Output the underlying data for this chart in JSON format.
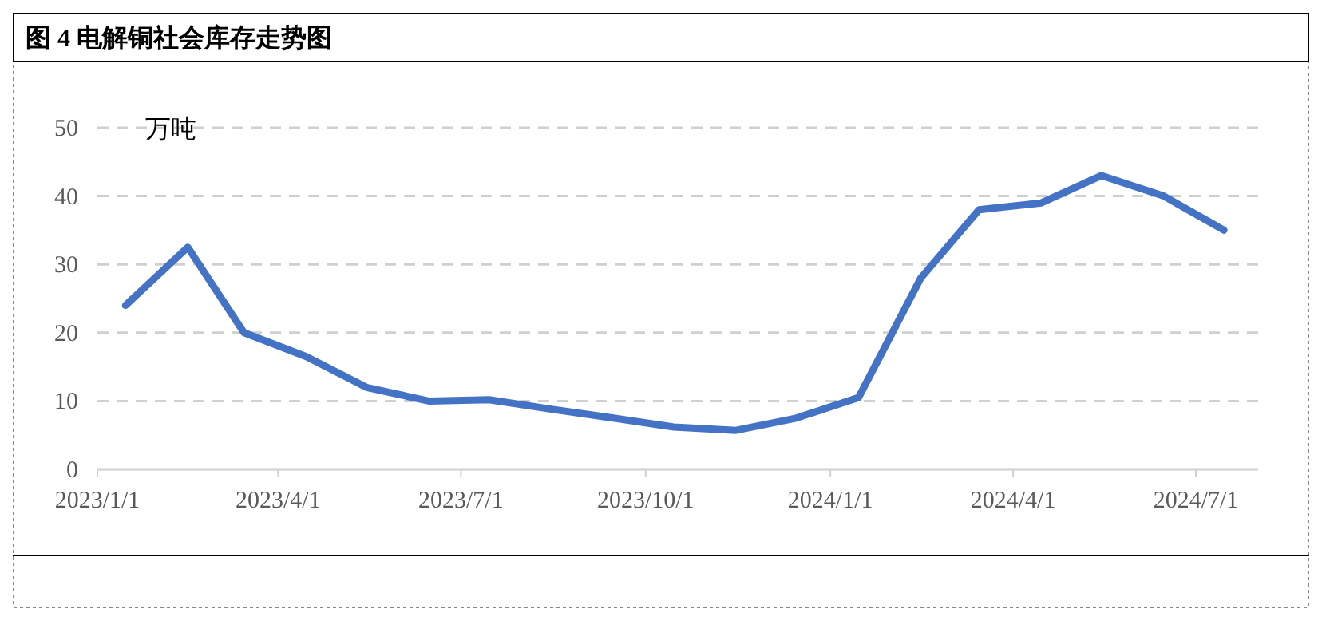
{
  "chart_data": {
    "type": "line",
    "title": "图 4  电解铜社会库存走势图",
    "ylabel": "万吨",
    "x": [
      "2023-01-15",
      "2023-02-15",
      "2023-03-15",
      "2023-04-15",
      "2023-05-15",
      "2023-06-15",
      "2023-07-15",
      "2023-08-15",
      "2023-09-15",
      "2023-10-15",
      "2023-11-15",
      "2023-12-15",
      "2024-01-15",
      "2024-02-15",
      "2024-03-15",
      "2024-04-15",
      "2024-05-15",
      "2024-06-15",
      "2024-07-15"
    ],
    "series": [
      {
        "color": "#4472c4",
        "values": [
          24,
          32.5,
          20,
          16.5,
          12,
          10,
          10.2,
          8.8,
          7.5,
          6.2,
          5.7,
          7.5,
          10.5,
          28,
          38,
          39,
          43,
          40,
          35
        ]
      }
    ],
    "xlim": [
      "2023-01-01",
      "2024-08-01"
    ],
    "xticks": [
      {
        "value": "2023-01-01",
        "label": "2023/1/1"
      },
      {
        "value": "2023-04-01",
        "label": "2023/4/1"
      },
      {
        "value": "2023-07-01",
        "label": "2023/7/1"
      },
      {
        "value": "2023-10-01",
        "label": "2023/10/1"
      },
      {
        "value": "2024-01-01",
        "label": "2024/1/1"
      },
      {
        "value": "2024-04-01",
        "label": "2024/4/1"
      },
      {
        "value": "2024-07-01",
        "label": "2024/7/1"
      }
    ],
    "ylim": [
      0,
      50
    ],
    "yticks": [
      0,
      10,
      20,
      30,
      40,
      50
    ],
    "grid": "y",
    "marker": "none",
    "line_style": "solid"
  }
}
